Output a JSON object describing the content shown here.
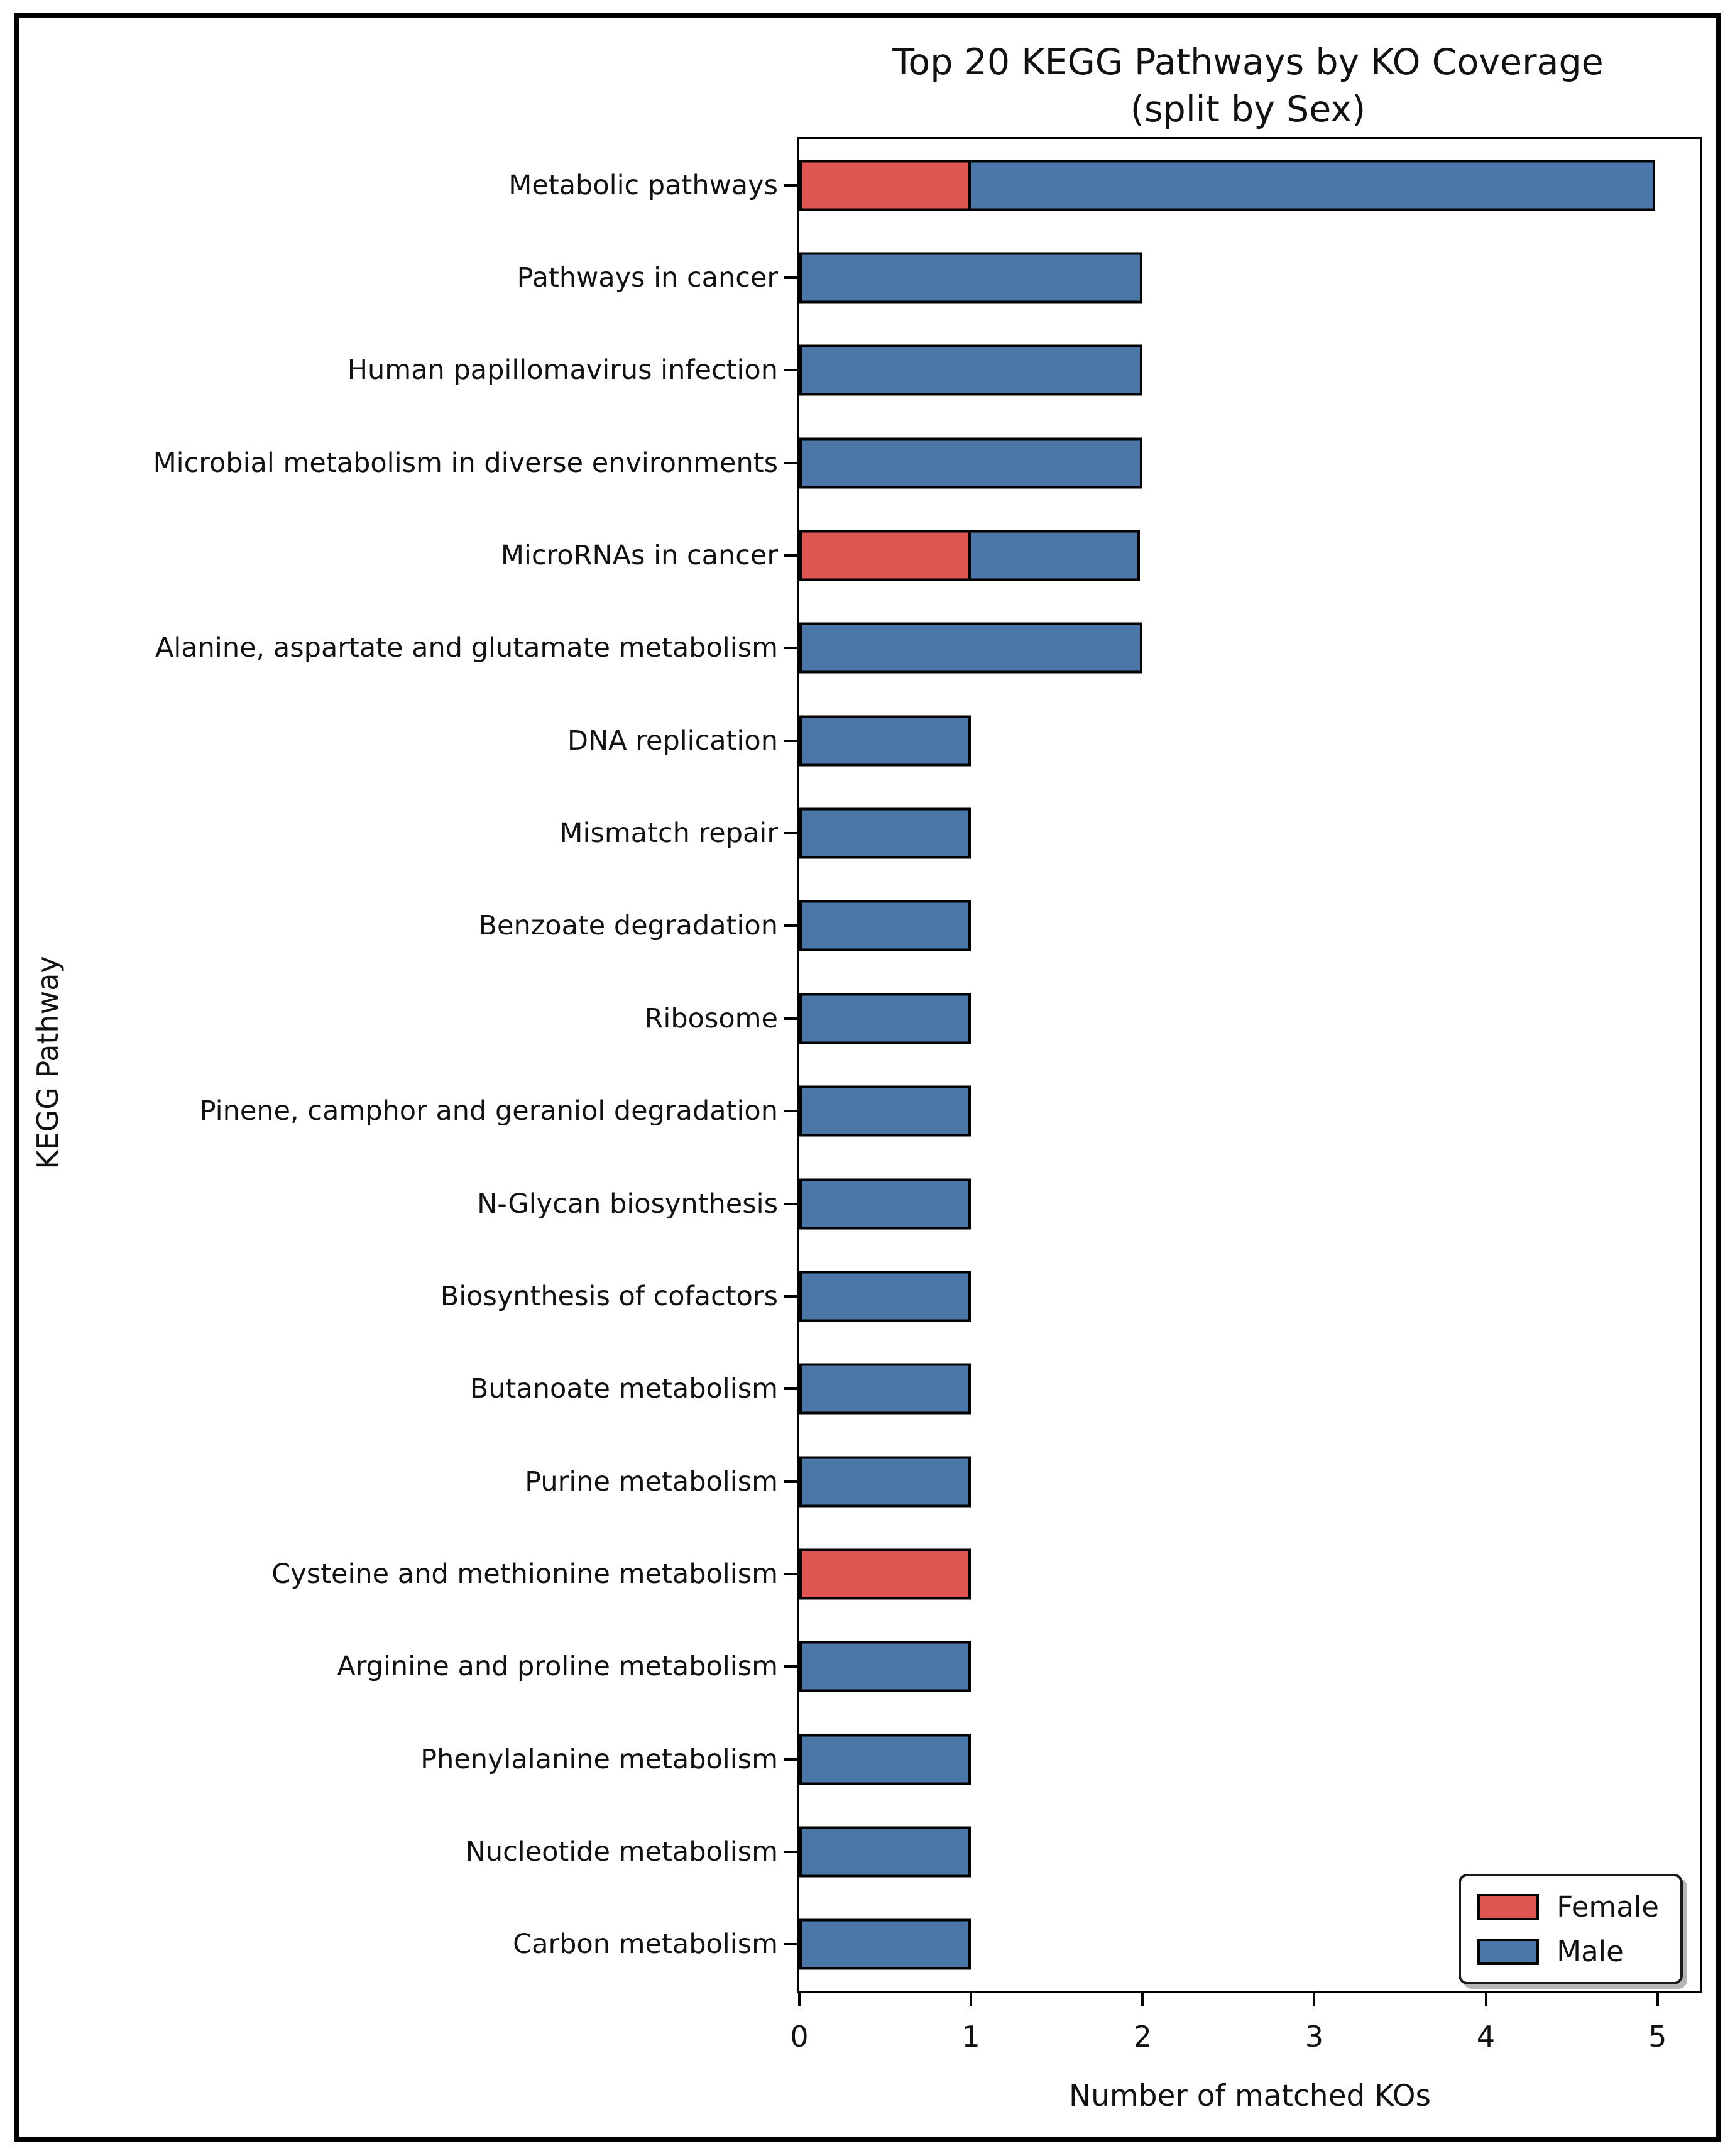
{
  "header": {
    "title_line1": "Top 20 KEGG Pathways by KO Coverage",
    "title_line2": "(split by Sex)"
  },
  "axes": {
    "xlabel": "Number of matched KOs",
    "ylabel": "KEGG Pathway"
  },
  "chart_data": {
    "type": "bar",
    "orientation": "horizontal",
    "stacked": true,
    "title": "Top 20 KEGG Pathways by KO Coverage (split by Sex)",
    "xlabel": "Number of matched KOs",
    "ylabel": "KEGG Pathway",
    "xlim": [
      0,
      5.25
    ],
    "xticks": [
      0,
      1,
      2,
      3,
      4,
      5
    ],
    "grid": false,
    "background": "#ffffff",
    "bar_edge_color": "#000000",
    "legend": {
      "position": "lower right",
      "entries": [
        {
          "label": "Female",
          "color": "#df5552"
        },
        {
          "label": "Male",
          "color": "#4a76a8"
        }
      ]
    },
    "categories": [
      "Metabolic pathways",
      "Pathways in cancer",
      "Human papillomavirus infection",
      "Microbial metabolism in diverse environments",
      "MicroRNAs in cancer",
      "Alanine, aspartate and glutamate metabolism",
      "DNA replication",
      "Mismatch repair",
      "Benzoate degradation",
      "Ribosome",
      "Pinene, camphor and geraniol degradation",
      "N-Glycan biosynthesis",
      "Biosynthesis of cofactors",
      "Butanoate metabolism",
      "Purine metabolism",
      "Cysteine and methionine metabolism",
      "Arginine and proline metabolism",
      "Phenylalanine metabolism",
      "Nucleotide metabolism",
      "Carbon metabolism"
    ],
    "series": [
      {
        "name": "Female",
        "color": "#df5552",
        "values": [
          1,
          0,
          0,
          0,
          1,
          0,
          0,
          0,
          0,
          0,
          0,
          0,
          0,
          0,
          0,
          1,
          0,
          0,
          0,
          0
        ]
      },
      {
        "name": "Male",
        "color": "#4a76a8",
        "values": [
          4,
          2,
          2,
          2,
          1,
          2,
          1,
          1,
          1,
          1,
          1,
          1,
          1,
          1,
          1,
          0,
          1,
          1,
          1,
          1
        ]
      }
    ],
    "totals": [
      5,
      2,
      2,
      2,
      2,
      2,
      1,
      1,
      1,
      1,
      1,
      1,
      1,
      1,
      1,
      1,
      1,
      1,
      1,
      1
    ]
  }
}
